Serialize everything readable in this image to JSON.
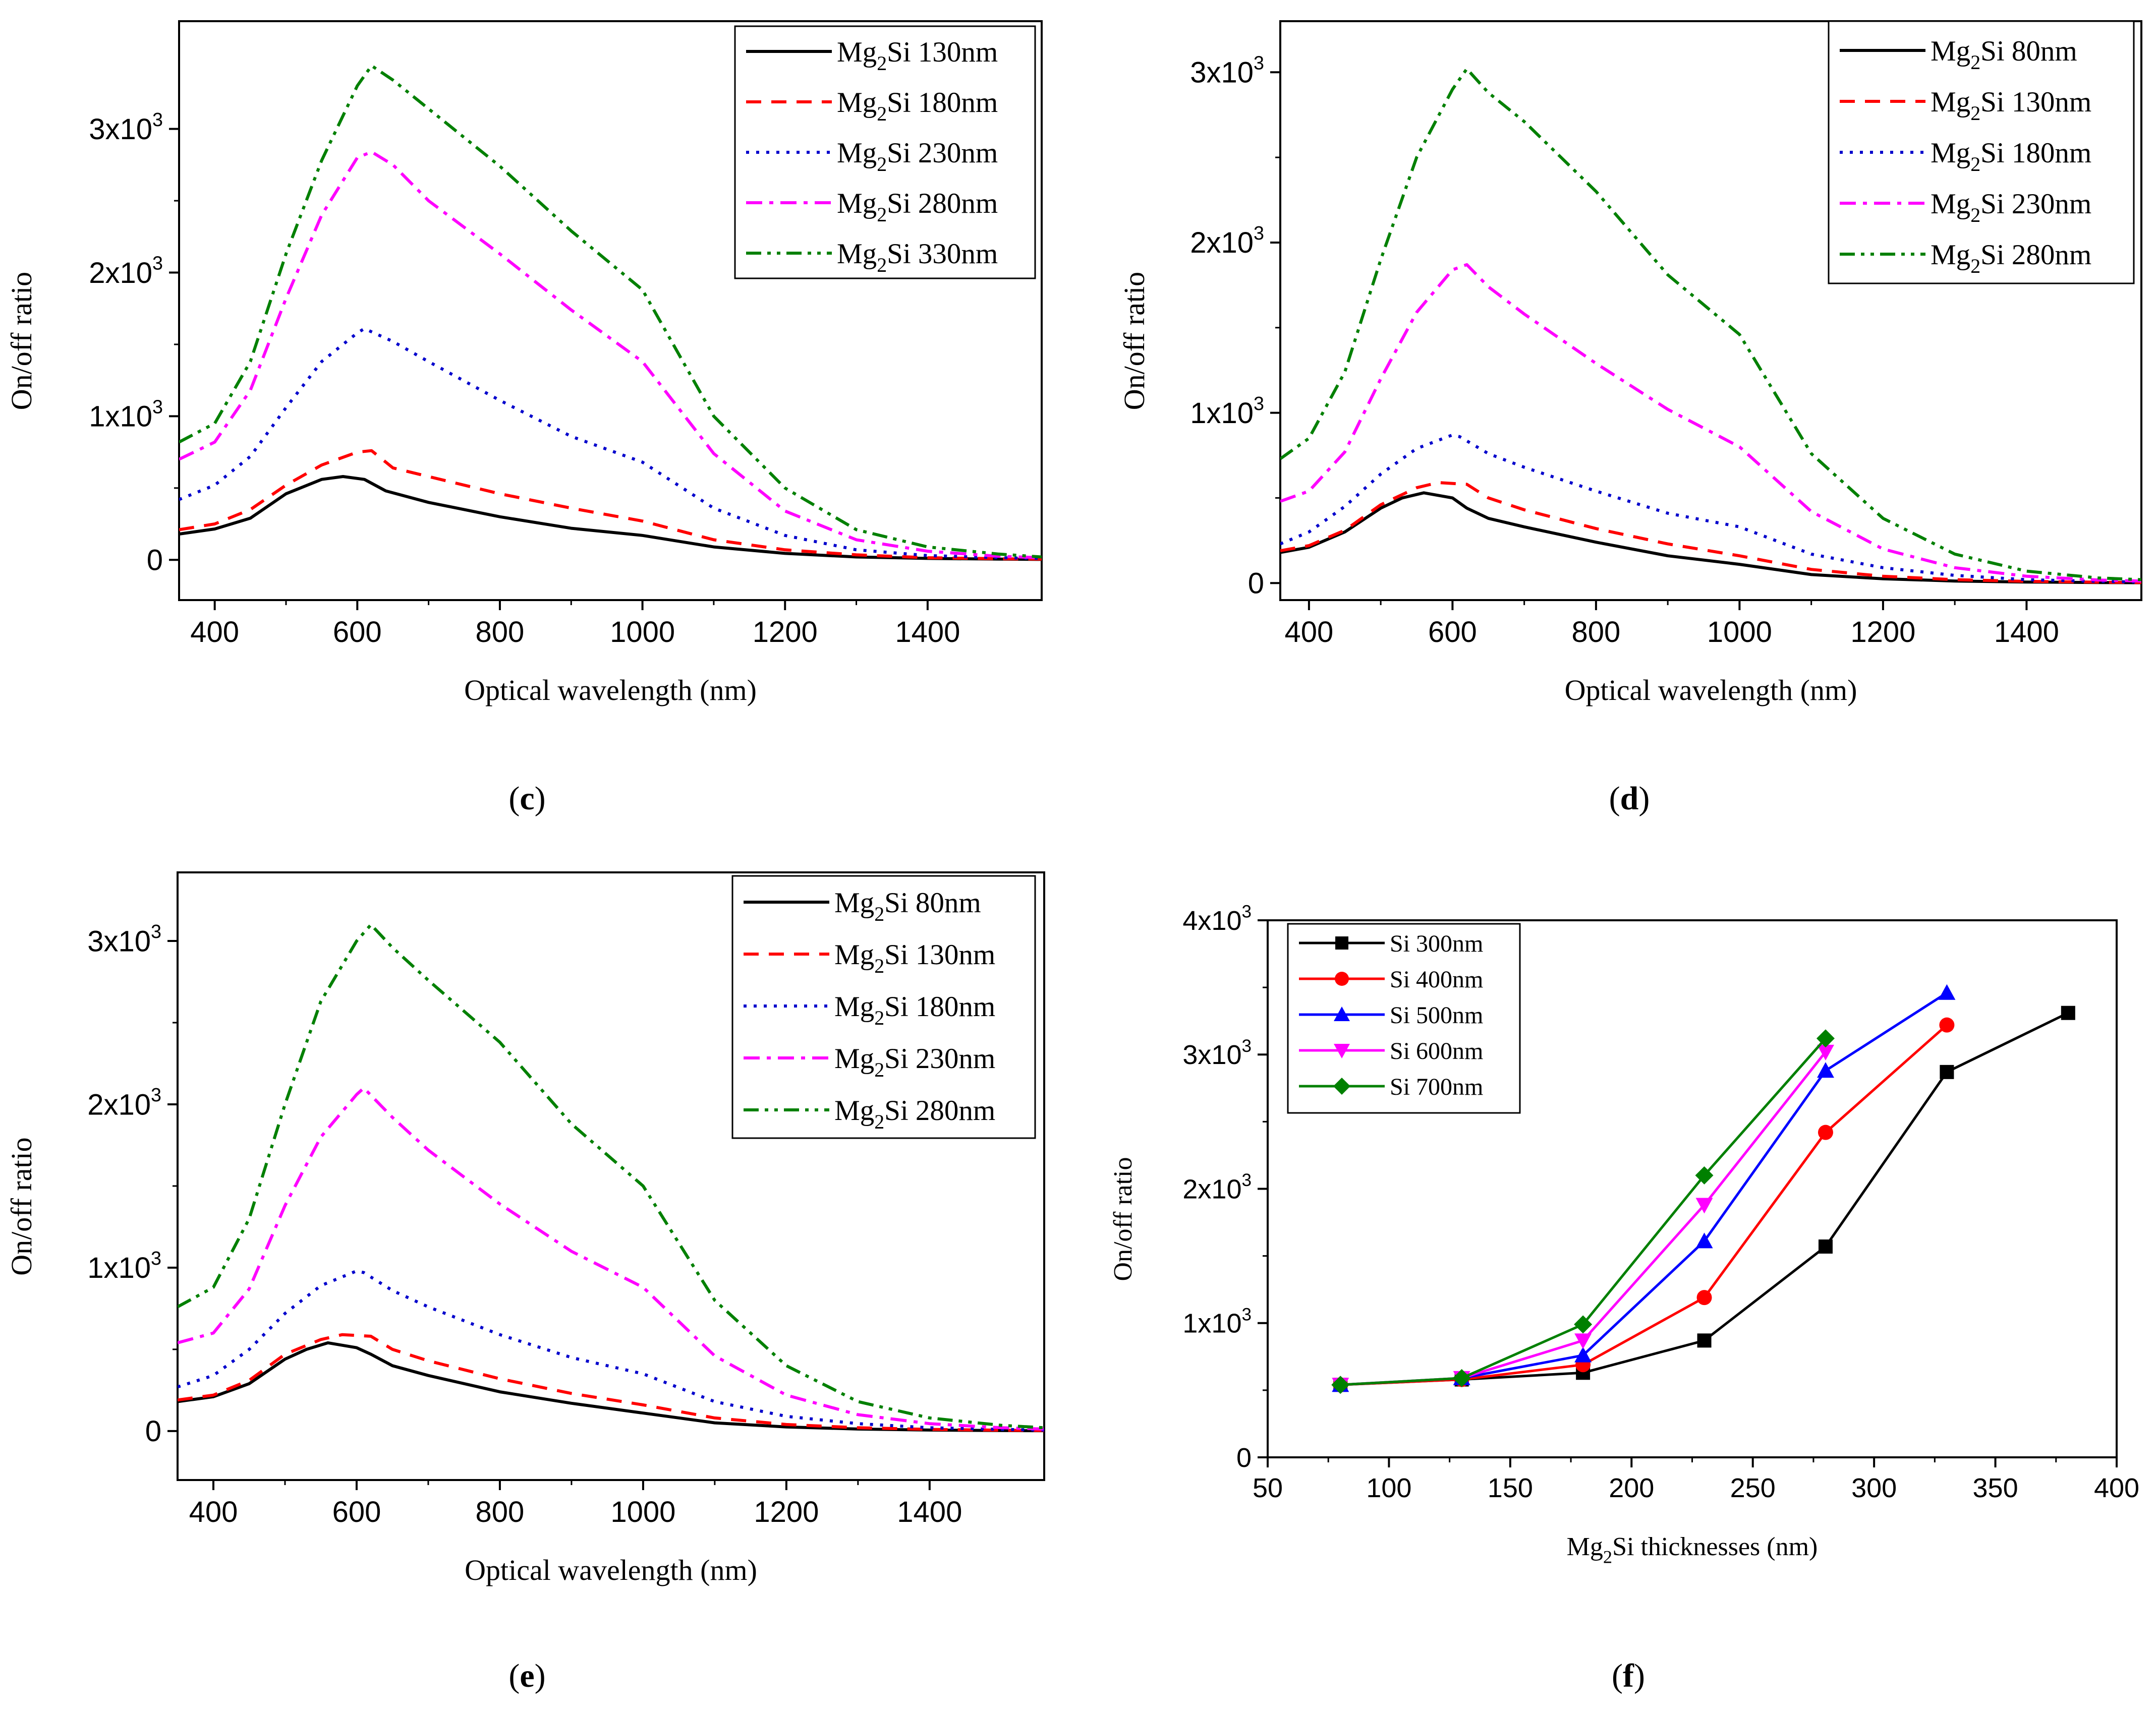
{
  "chart_data": [
    {
      "type": "line",
      "panel": "c",
      "caption": "(c)",
      "xlabel": "Optical wavelength (nm)",
      "ylabel": "On/off ratio",
      "xlim": [
        350,
        1560
      ],
      "ylim": [
        -280,
        3750
      ],
      "xticks": [
        400,
        600,
        800,
        1000,
        1200,
        1400
      ],
      "yticks": [
        {
          "value": 0,
          "base": "0",
          "exp": ""
        },
        {
          "value": 1000,
          "base": "1x10",
          "exp": "3"
        },
        {
          "value": 2000,
          "base": "2x10",
          "exp": "3"
        },
        {
          "value": 3000,
          "base": "3x10",
          "exp": "3"
        }
      ],
      "series": [
        {
          "name": "Mg2Si 130nm",
          "label_main": "Mg",
          "label_sub": "2",
          "label_rest": "Si 130nm",
          "color": "#000000",
          "dash": "solid",
          "x": [
            350,
            400,
            450,
            500,
            550,
            580,
            610,
            640,
            700,
            800,
            900,
            1000,
            1100,
            1200,
            1300,
            1400,
            1500,
            1560
          ],
          "y": [
            180,
            215,
            290,
            460,
            560,
            580,
            560,
            480,
            400,
            300,
            220,
            170,
            90,
            45,
            20,
            10,
            5,
            3
          ]
        },
        {
          "name": "Mg2Si 180nm",
          "label_main": "Mg",
          "label_sub": "2",
          "label_rest": "Si 180nm",
          "color": "#ff0000",
          "dash": "dash",
          "x": [
            350,
            400,
            450,
            500,
            550,
            600,
            620,
            650,
            700,
            800,
            900,
            1000,
            1100,
            1200,
            1300,
            1400,
            1500,
            1560
          ],
          "y": [
            210,
            250,
            350,
            520,
            660,
            750,
            760,
            640,
            580,
            460,
            360,
            270,
            140,
            70,
            35,
            15,
            8,
            5
          ]
        },
        {
          "name": "Mg2Si 230nm",
          "label_main": "Mg",
          "label_sub": "2",
          "label_rest": "Si 230nm",
          "color": "#0000cc",
          "dash": "dot",
          "x": [
            350,
            400,
            450,
            500,
            550,
            600,
            610,
            650,
            700,
            800,
            900,
            1000,
            1100,
            1200,
            1300,
            1400,
            1500,
            1560
          ],
          "y": [
            420,
            520,
            720,
            1060,
            1380,
            1580,
            1610,
            1520,
            1380,
            1110,
            860,
            680,
            360,
            170,
            70,
            30,
            15,
            10
          ]
        },
        {
          "name": "Mg2Si 280nm",
          "label_main": "Mg",
          "label_sub": "2",
          "label_rest": "Si 280nm",
          "color": "#ff00ff",
          "dash": "dashdot",
          "x": [
            350,
            400,
            450,
            500,
            550,
            600,
            620,
            650,
            700,
            800,
            900,
            1000,
            1100,
            1200,
            1300,
            1400,
            1500,
            1560
          ],
          "y": [
            700,
            820,
            1180,
            1820,
            2400,
            2800,
            2840,
            2750,
            2500,
            2130,
            1740,
            1380,
            740,
            340,
            140,
            60,
            25,
            15
          ]
        },
        {
          "name": "Mg2Si 330nm",
          "label_main": "Mg",
          "label_sub": "2",
          "label_rest": "Si 330nm",
          "color": "#008000",
          "dash": "dashdotdot",
          "x": [
            350,
            400,
            450,
            500,
            550,
            600,
            620,
            650,
            700,
            800,
            900,
            1000,
            1100,
            1200,
            1300,
            1400,
            1500,
            1560
          ],
          "y": [
            820,
            950,
            1380,
            2130,
            2780,
            3300,
            3440,
            3340,
            3140,
            2740,
            2290,
            1880,
            1000,
            500,
            210,
            90,
            40,
            20
          ]
        }
      ]
    },
    {
      "type": "line",
      "panel": "d",
      "caption": "(d)",
      "xlabel": "Optical wavelength (nm)",
      "ylabel": "On/off ratio",
      "xlim": [
        360,
        1560
      ],
      "ylim": [
        -100,
        3300
      ],
      "xticks": [
        400,
        600,
        800,
        1000,
        1200,
        1400
      ],
      "yticks": [
        {
          "value": 0,
          "base": "0",
          "exp": ""
        },
        {
          "value": 1000,
          "base": "1x10",
          "exp": "3"
        },
        {
          "value": 2000,
          "base": "2x10",
          "exp": "3"
        },
        {
          "value": 3000,
          "base": "3x10",
          "exp": "3"
        }
      ],
      "series": [
        {
          "name": "Mg2Si 80nm",
          "label_main": "Mg",
          "label_sub": "2",
          "label_rest": "Si  80nm",
          "color": "#000000",
          "dash": "solid",
          "x": [
            360,
            400,
            450,
            500,
            530,
            560,
            600,
            620,
            650,
            700,
            800,
            900,
            1000,
            1100,
            1200,
            1300,
            1400,
            1500,
            1560
          ],
          "y": [
            180,
            210,
            300,
            440,
            500,
            530,
            500,
            440,
            380,
            330,
            240,
            160,
            110,
            50,
            25,
            12,
            6,
            3,
            2
          ]
        },
        {
          "name": "Mg2Si 130nm",
          "label_main": "Mg",
          "label_sub": "2",
          "label_rest": "Si 130nm",
          "color": "#ff0000",
          "dash": "dash",
          "x": [
            360,
            400,
            450,
            500,
            550,
            580,
            620,
            650,
            700,
            800,
            900,
            1000,
            1100,
            1200,
            1300,
            1400,
            1500,
            1560
          ],
          "y": [
            190,
            220,
            310,
            460,
            560,
            590,
            580,
            500,
            430,
            320,
            230,
            160,
            80,
            40,
            20,
            10,
            5,
            3
          ]
        },
        {
          "name": "Mg2Si 180nm",
          "label_main": "Mg",
          "label_sub": "2",
          "label_rest": "Si 180nm",
          "color": "#0000cc",
          "dash": "dot",
          "x": [
            360,
            400,
            450,
            500,
            550,
            600,
            610,
            650,
            700,
            800,
            900,
            1000,
            1100,
            1200,
            1300,
            1400,
            1500,
            1560
          ],
          "y": [
            230,
            300,
            450,
            640,
            790,
            870,
            860,
            760,
            680,
            540,
            410,
            330,
            170,
            90,
            45,
            20,
            10,
            6
          ]
        },
        {
          "name": "Mg2Si 230nm",
          "label_main": "Mg",
          "label_sub": "2",
          "label_rest": "Si 230nm",
          "color": "#ff00ff",
          "dash": "dashdot",
          "x": [
            360,
            400,
            450,
            500,
            550,
            600,
            620,
            650,
            700,
            800,
            900,
            1000,
            1100,
            1200,
            1300,
            1400,
            1500,
            1560
          ],
          "y": [
            480,
            540,
            770,
            1200,
            1590,
            1840,
            1870,
            1740,
            1580,
            1290,
            1020,
            800,
            420,
            200,
            90,
            40,
            18,
            12
          ]
        },
        {
          "name": "Mg2Si 280nm",
          "label_main": "Mg",
          "label_sub": "2",
          "label_rest": "Si 280nm",
          "color": "#008000",
          "dash": "dashdotdot",
          "x": [
            360,
            400,
            450,
            500,
            550,
            600,
            620,
            650,
            700,
            800,
            900,
            1000,
            1100,
            1200,
            1300,
            1400,
            1500,
            1560
          ],
          "y": [
            730,
            850,
            1240,
            1900,
            2500,
            2900,
            3020,
            2880,
            2710,
            2300,
            1810,
            1460,
            760,
            380,
            170,
            70,
            30,
            20
          ]
        }
      ]
    },
    {
      "type": "line",
      "panel": "e",
      "caption": "(e)",
      "xlabel": "Optical wavelength (nm)",
      "ylabel": "On/off ratio",
      "xlim": [
        350,
        1560
      ],
      "ylim": [
        -300,
        3420
      ],
      "xticks": [
        400,
        600,
        800,
        1000,
        1200,
        1400
      ],
      "yticks": [
        {
          "value": 0,
          "base": "0",
          "exp": ""
        },
        {
          "value": 1000,
          "base": "1x10",
          "exp": "3"
        },
        {
          "value": 2000,
          "base": "2x10",
          "exp": "3"
        },
        {
          "value": 3000,
          "base": "3x10",
          "exp": "3"
        }
      ],
      "series": [
        {
          "name": "Mg2Si 80nm",
          "label_main": "Mg",
          "label_sub": "2",
          "label_rest": "Si 80nm",
          "color": "#000000",
          "dash": "solid",
          "x": [
            350,
            400,
            450,
            500,
            530,
            560,
            600,
            620,
            650,
            700,
            800,
            900,
            1000,
            1100,
            1200,
            1300,
            1400,
            1500,
            1560
          ],
          "y": [
            180,
            210,
            290,
            440,
            500,
            540,
            510,
            470,
            400,
            340,
            240,
            170,
            110,
            50,
            25,
            12,
            6,
            3,
            2
          ]
        },
        {
          "name": "Mg2Si 130nm",
          "label_main": "Mg",
          "label_sub": "2",
          "label_rest": "Si 130nm",
          "color": "#ff0000",
          "dash": "dash",
          "x": [
            350,
            400,
            450,
            500,
            550,
            580,
            620,
            650,
            700,
            800,
            900,
            1000,
            1100,
            1200,
            1300,
            1400,
            1500,
            1560
          ],
          "y": [
            190,
            220,
            310,
            470,
            560,
            590,
            580,
            500,
            430,
            320,
            230,
            160,
            80,
            40,
            20,
            10,
            5,
            3
          ]
        },
        {
          "name": "Mg2Si 180nm",
          "label_main": "Mg",
          "label_sub": "2",
          "label_rest": "Si 180nm",
          "color": "#0000cc",
          "dash": "dot",
          "x": [
            350,
            400,
            450,
            500,
            550,
            600,
            610,
            650,
            700,
            800,
            900,
            1000,
            1100,
            1200,
            1300,
            1400,
            1500,
            1560
          ],
          "y": [
            270,
            340,
            500,
            720,
            890,
            980,
            970,
            860,
            760,
            590,
            450,
            350,
            180,
            90,
            45,
            20,
            10,
            6
          ]
        },
        {
          "name": "Mg2Si 230nm",
          "label_main": "Mg",
          "label_sub": "2",
          "label_rest": "Si 230nm",
          "color": "#ff00ff",
          "dash": "dashdot",
          "x": [
            350,
            400,
            450,
            500,
            550,
            600,
            610,
            650,
            700,
            800,
            900,
            1000,
            1100,
            1200,
            1300,
            1400,
            1500,
            1560
          ],
          "y": [
            540,
            600,
            870,
            1380,
            1800,
            2060,
            2100,
            1920,
            1720,
            1390,
            1100,
            880,
            460,
            220,
            100,
            45,
            20,
            12
          ]
        },
        {
          "name": "Mg2Si 280nm",
          "label_main": "Mg",
          "label_sub": "2",
          "label_rest": "Si 280nm",
          "color": "#008000",
          "dash": "dashdotdot",
          "x": [
            350,
            400,
            450,
            500,
            550,
            600,
            620,
            650,
            700,
            800,
            900,
            1000,
            1100,
            1200,
            1300,
            1400,
            1500,
            1560
          ],
          "y": [
            760,
            880,
            1300,
            2000,
            2630,
            3000,
            3100,
            2960,
            2760,
            2380,
            1880,
            1500,
            800,
            400,
            180,
            80,
            35,
            20
          ]
        }
      ]
    },
    {
      "type": "line",
      "panel": "f",
      "caption": "(f)",
      "xlabel_main": "Mg",
      "xlabel_sub": "2",
      "xlabel_rest": "Si thicknesses (nm)",
      "ylabel": "On/off ratio",
      "xlim": [
        50,
        400
      ],
      "ylim": [
        0,
        4000
      ],
      "xticks": [
        50,
        100,
        150,
        200,
        250,
        300,
        350,
        400
      ],
      "yticks": [
        {
          "value": 0,
          "base": "0",
          "exp": ""
        },
        {
          "value": 1000,
          "base": "1x10",
          "exp": "3"
        },
        {
          "value": 2000,
          "base": "2x10",
          "exp": "3"
        },
        {
          "value": 3000,
          "base": "3x10",
          "exp": "3"
        },
        {
          "value": 4000,
          "base": "4x10",
          "exp": "3"
        }
      ],
      "series": [
        {
          "name": "Si 300nm",
          "color": "#000000",
          "marker": "square",
          "x": [
            80,
            130,
            180,
            230,
            280,
            330,
            380
          ],
          "y": [
            540,
            580,
            630,
            870,
            1570,
            2870,
            3310
          ]
        },
        {
          "name": "Si 400nm",
          "color": "#ff0000",
          "marker": "circle",
          "x": [
            80,
            130,
            180,
            230,
            280,
            330
          ],
          "y": [
            540,
            580,
            690,
            1190,
            2420,
            3220
          ]
        },
        {
          "name": "Si 500nm",
          "color": "#0000ff",
          "marker": "triangle-up",
          "x": [
            80,
            130,
            180,
            230,
            280,
            330
          ],
          "y": [
            540,
            590,
            760,
            1610,
            2880,
            3460
          ]
        },
        {
          "name": "Si 600nm",
          "color": "#ff00ff",
          "marker": "triangle-down",
          "x": [
            80,
            130,
            180,
            230,
            280
          ],
          "y": [
            540,
            590,
            870,
            1880,
            3020
          ]
        },
        {
          "name": "Si 700nm",
          "color": "#008000",
          "marker": "diamond",
          "x": [
            80,
            130,
            180,
            230,
            280
          ],
          "y": [
            540,
            590,
            990,
            2100,
            3120
          ]
        }
      ]
    }
  ]
}
